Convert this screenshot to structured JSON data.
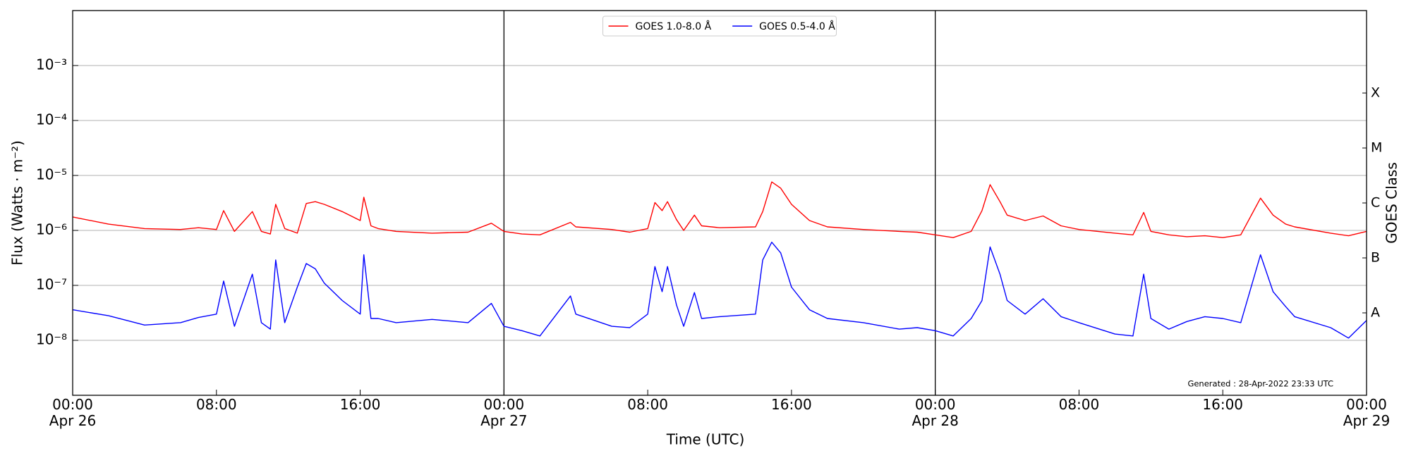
{
  "chart_data": {
    "type": "line",
    "x_label": "Time (UTC)",
    "y_label": "Flux (Watts · m⁻²)",
    "y2_label": "GOES Class",
    "annotation": "Generated : 28-Apr-2022 23:33 UTC",
    "log_scale": true,
    "grid": true,
    "legend": "upper center",
    "xlim": [
      "Apr 26 00:00",
      "Apr 29 00:00"
    ],
    "xticks": [
      {
        "value": "Apr 26 00:00",
        "label": "00:00\nApr 26"
      },
      {
        "value": "Apr 26 08:00",
        "label": "08:00"
      },
      {
        "value": "Apr 26 16:00",
        "label": "16:00"
      },
      {
        "value": "Apr 27 00:00",
        "label": "00:00\nApr 27"
      },
      {
        "value": "Apr 27 08:00",
        "label": "08:00"
      },
      {
        "value": "Apr 27 16:00",
        "label": "16:00"
      },
      {
        "value": "Apr 28 00:00",
        "label": "00:00\nApr 28"
      },
      {
        "value": "Apr 28 08:00",
        "label": "08:00"
      },
      {
        "value": "Apr 28 16:00",
        "label": "16:00"
      },
      {
        "value": "Apr 29 00:00",
        "label": "00:00\nApr 29"
      }
    ],
    "ylim": [
      1e-09,
      0.01
    ],
    "yticks": [
      {
        "value": 1e-08,
        "label": "10⁻⁸"
      },
      {
        "value": 1e-07,
        "label": "10⁻⁷"
      },
      {
        "value": 1e-06,
        "label": "10⁻⁶"
      },
      {
        "value": 1e-05,
        "label": "10⁻⁵"
      },
      {
        "value": 0.0001,
        "label": "10⁻⁴"
      },
      {
        "value": 0.001,
        "label": "10⁻³"
      }
    ],
    "y2lim": [
      1e-09,
      0.01
    ],
    "y2ticks": [
      {
        "value": 3.16e-08,
        "label": "A"
      },
      {
        "value": 3.16e-07,
        "label": "B"
      },
      {
        "value": 3.16e-06,
        "label": "C"
      },
      {
        "value": 3.16e-05,
        "label": "M"
      },
      {
        "value": 0.000316,
        "label": "X"
      }
    ],
    "x": [
      "Apr 26 00:00",
      "Apr 26 02:00",
      "Apr 26 04:00",
      "Apr 26 06:00",
      "Apr 26 07:00",
      "Apr 26 08:00",
      "Apr 26 08:24",
      "Apr 26 09:00",
      "Apr 26 10:00",
      "Apr 26 10:30",
      "Apr 26 11:00",
      "Apr 26 11:18",
      "Apr 26 11:48",
      "Apr 26 12:30",
      "Apr 26 13:00",
      "Apr 26 13:30",
      "Apr 26 14:00",
      "Apr 26 15:00",
      "Apr 26 16:00",
      "Apr 26 16:12",
      "Apr 26 16:36",
      "Apr 26 17:00",
      "Apr 26 18:00",
      "Apr 26 20:00",
      "Apr 26 22:00",
      "Apr 26 23:18",
      "Apr 27 00:00",
      "Apr 27 01:00",
      "Apr 27 02:00",
      "Apr 27 03:42",
      "Apr 27 04:00",
      "Apr 27 06:00",
      "Apr 27 07:00",
      "Apr 27 08:00",
      "Apr 27 08:24",
      "Apr 27 08:48",
      "Apr 27 09:06",
      "Apr 27 09:36",
      "Apr 27 10:00",
      "Apr 27 10:36",
      "Apr 27 11:00",
      "Apr 27 12:00",
      "Apr 27 14:00",
      "Apr 27 14:24",
      "Apr 27 14:54",
      "Apr 27 15:24",
      "Apr 27 16:00",
      "Apr 27 17:00",
      "Apr 27 18:00",
      "Apr 27 20:00",
      "Apr 27 22:00",
      "Apr 27 23:00",
      "Apr 28 00:00",
      "Apr 28 01:00",
      "Apr 28 02:00",
      "Apr 28 02:36",
      "Apr 28 03:03",
      "Apr 28 03:36",
      "Apr 28 04:00",
      "Apr 28 05:00",
      "Apr 28 06:00",
      "Apr 28 07:00",
      "Apr 28 08:00",
      "Apr 28 10:00",
      "Apr 28 11:00",
      "Apr 28 11:36",
      "Apr 28 12:00",
      "Apr 28 13:00",
      "Apr 28 14:00",
      "Apr 28 15:00",
      "Apr 28 16:00",
      "Apr 28 17:00",
      "Apr 28 18:06",
      "Apr 28 18:48",
      "Apr 28 19:30",
      "Apr 28 20:00",
      "Apr 28 22:00",
      "Apr 28 23:00",
      "Apr 29 00:00"
    ],
    "series": [
      {
        "name": "GOES 1.0-8.0 Å",
        "color": "#ff0000",
        "values": [
          1.76e-06,
          1.3e-06,
          1.08e-06,
          1.04e-06,
          1.12e-06,
          1.04e-06,
          2.29e-06,
          9.6e-07,
          2.2e-06,
          9.6e-07,
          8.6e-07,
          2.98e-06,
          1.08e-06,
          8.9e-07,
          3.09e-06,
          3.33e-06,
          2.98e-06,
          2.2e-06,
          1.51e-06,
          4.02e-06,
          1.21e-06,
          1.08e-06,
          9.6e-07,
          8.9e-07,
          9.3e-07,
          1.35e-06,
          9.6e-07,
          8.6e-07,
          8.3e-07,
          1.4e-06,
          1.16e-06,
          1.04e-06,
          9.3e-07,
          1.08e-06,
          3.21e-06,
          2.29e-06,
          3.33e-06,
          1.57e-06,
          1e-06,
          1.9e-06,
          1.21e-06,
          1.12e-06,
          1.16e-06,
          2.2e-06,
          7.63e-06,
          5.86e-06,
          2.98e-06,
          1.51e-06,
          1.16e-06,
          1.04e-06,
          9.6e-07,
          9.3e-07,
          8.3e-07,
          7.4e-07,
          9.6e-07,
          2.29e-06,
          6.8e-06,
          3.33e-06,
          1.9e-06,
          1.51e-06,
          1.83e-06,
          1.21e-06,
          1.04e-06,
          8.9e-07,
          8.3e-07,
          2.12e-06,
          9.6e-07,
          8.3e-07,
          7.7e-07,
          8e-07,
          7.4e-07,
          8.3e-07,
          3.87e-06,
          1.9e-06,
          1.3e-06,
          1.16e-06,
          8.9e-07,
          8e-07,
          9.6e-07
        ]
      },
      {
        "name": "GOES 0.5-4.0 Å",
        "color": "#0000ff",
        "values": [
          3.6e-08,
          2.8e-08,
          1.9e-08,
          2.1e-08,
          2.6e-08,
          3e-08,
          1.2e-07,
          1.8e-08,
          1.6e-07,
          2.1e-08,
          1.6e-08,
          2.9e-07,
          2.1e-08,
          9.3e-08,
          2.5e-07,
          2e-07,
          1.1e-07,
          5.3e-08,
          3e-08,
          3.6e-07,
          2.5e-08,
          2.5e-08,
          2.1e-08,
          2.4e-08,
          2.1e-08,
          4.7e-08,
          1.8e-08,
          1.5e-08,
          1.2e-08,
          6.4e-08,
          3e-08,
          1.8e-08,
          1.7e-08,
          3e-08,
          2.2e-07,
          7.7e-08,
          2.2e-07,
          4.4e-08,
          1.8e-08,
          7.4e-08,
          2.5e-08,
          2.7e-08,
          3e-08,
          2.9e-07,
          6.1e-07,
          3.9e-07,
          9.3e-08,
          3.6e-08,
          2.5e-08,
          2.1e-08,
          1.6e-08,
          1.7e-08,
          1.5e-08,
          1.2e-08,
          2.5e-08,
          5.3e-08,
          5e-07,
          1.6e-07,
          5.3e-08,
          3e-08,
          5.7e-08,
          2.7e-08,
          2.1e-08,
          1.3e-08,
          1.2e-08,
          1.6e-07,
          2.5e-08,
          1.6e-08,
          2.2e-08,
          2.7e-08,
          2.5e-08,
          2.1e-08,
          3.6e-07,
          7.7e-08,
          4.1e-08,
          2.7e-08,
          1.7e-08,
          1.1e-08,
          2.3e-08
        ]
      }
    ]
  }
}
